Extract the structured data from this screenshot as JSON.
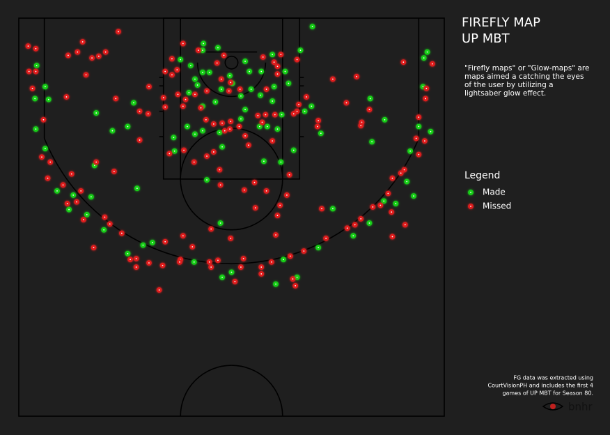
{
  "chart_data": {
    "type": "scatter",
    "title": "FIREFLY MAP",
    "subtitle": "UP MBT",
    "description": [
      "\"Firefly maps\" or \"Glow-maps\" are",
      "maps aimed a catching the eyes",
      "of the user by utilizing a",
      "lightsaber glow effect."
    ],
    "legend_title": "Legend",
    "note": [
      "FG data was extracted using",
      "CourtVisionPH and includes the first 4",
      "games of UP MBT for Season 80."
    ],
    "logo_text": "bnhr",
    "xlim": [
      0,
      50
    ],
    "ylim": [
      47,
      0
    ],
    "series": [
      {
        "name": "Made",
        "color": "#19d019",
        "x": [
          34.5,
          2.1,
          1.9,
          3.5,
          3.1,
          2.0,
          3.1,
          9.1,
          11.0,
          12.8,
          13.5,
          8.9,
          13.9,
          4.5,
          6.4,
          5.9,
          8.5,
          8.0,
          10.0,
          12.8,
          14.6,
          15.7,
          20.6,
          23.9,
          25.0,
          23.7,
          22.1,
          30.2,
          31.1,
          32.7,
          35.2,
          36.9,
          39.3,
          41.2,
          42.9,
          45.6,
          46.4,
          46.0,
          47.0,
          48.4,
          47.5,
          48.0,
          47.6,
          43.0,
          41.5,
          41.3,
          35.5,
          34.4,
          32.3,
          30.8,
          28.8,
          33.1,
          31.3,
          31.7,
          29.8,
          28.5,
          27.1,
          26.6,
          23.4,
          21.7,
          21.6,
          22.4,
          21.6,
          20.7,
          21.0,
          20.2,
          19.0,
          24.8,
          25.1,
          23.8,
          23.1,
          26.1,
          27.3,
          28.4,
          29.8,
          30.0,
          30.9,
          26.6,
          26.1,
          28.3,
          29.2,
          30.4,
          21.6,
          19.8,
          21.6,
          20.7,
          23.6,
          23.9,
          18.2,
          18.3,
          20.0,
          33.6,
          44.3
        ],
        "values": [
          1.0,
          5.6,
          9.5,
          9.6,
          8.1,
          13.1,
          15.4,
          11.2,
          13.3,
          12.8,
          10.0,
          17.4,
          20.1,
          20.4,
          20.9,
          22.6,
          21.1,
          23.2,
          25.0,
          27.8,
          26.8,
          26.5,
          28.8,
          30.6,
          30.0,
          24.2,
          19.1,
          31.4,
          28.5,
          30.6,
          27.1,
          22.5,
          25.7,
          24.2,
          21.6,
          19.3,
          21.0,
          15.7,
          12.8,
          13.4,
          8.1,
          4.0,
          4.7,
          12.0,
          14.6,
          9.5,
          13.6,
          10.4,
          15.6,
          17.0,
          16.9,
          3.8,
          6.3,
          7.7,
          4.3,
          6.3,
          6.3,
          5.1,
          3.5,
          3.0,
          3.8,
          6.4,
          6.4,
          7.2,
          7.9,
          5.6,
          4.9,
          6.8,
          7.7,
          8.4,
          9.9,
          9.2,
          8.4,
          9.1,
          9.8,
          8.1,
          11.4,
          10.8,
          11.9,
          12.8,
          12.8,
          13.1,
          10.4,
          12.8,
          13.3,
          13.7,
          13.5,
          15.2,
          14.1,
          15.7,
          8.8,
          11.0,
          21.9
        ]
      },
      {
        "name": "Missed",
        "color": "#e01e1e",
        "x": [
          11.7,
          7.5,
          1.1,
          2.0,
          5.8,
          6.9,
          8.6,
          9.4,
          10.2,
          1.2,
          2.0,
          7.9,
          1.6,
          5.6,
          2.9,
          11.4,
          14.2,
          15.2,
          15.3,
          14.2,
          9.1,
          11.2,
          2.7,
          3.7,
          6.2,
          3.4,
          5.2,
          7.3,
          6.8,
          5.7,
          7.6,
          10.1,
          10.7,
          12.1,
          8.8,
          13.1,
          13.8,
          13.8,
          15.3,
          16.9,
          17.2,
          19.3,
          20.4,
          19.0,
          18.9,
          22.4,
          22.6,
          23.4,
          26.1,
          26.4,
          25.4,
          28.5,
          28.5,
          29.7,
          31.9,
          33.5,
          32.2,
          32.5,
          16.5,
          24.9,
          22.6,
          30.2,
          30.4,
          30.7,
          31.5,
          27.8,
          26.5,
          29.1,
          27.7,
          23.6,
          23.7,
          31.8,
          20.6,
          22.1,
          22.9,
          19.4,
          17.7,
          35.6,
          36.1,
          38.6,
          39.5,
          40.2,
          41.6,
          42.5,
          43.4,
          43.8,
          43.9,
          45.4,
          43.9,
          44.9,
          45.3,
          47.0,
          46.7,
          47.7,
          47.0,
          47.8,
          47.9,
          48.6,
          45.2,
          40.3,
          40.2,
          41.2,
          38.5,
          39.7,
          36.9,
          35.2,
          35.1,
          33.8,
          32.9,
          32.7,
          32.3,
          29.8,
          27.0,
          26.6,
          24.8,
          24.9,
          23.9,
          24.2,
          22.9,
          22.0,
          28.1,
          29.0,
          30.1,
          28.6,
          25.9,
          21.4,
          19.6,
          19.3,
          18.7,
          17.0,
          17.2,
          20.7,
          22.1,
          24.7,
          26.0,
          23.8,
          24.9,
          18.0,
          17.2,
          18.6,
          18.0,
          19.3,
          21.1,
          24.1,
          23.3,
          28.7,
          30.8,
          30.4,
          30.4,
          30.0,
          32.7,
          29.1
        ],
        "values": [
          1.6,
          2.8,
          3.3,
          3.6,
          4.4,
          4.0,
          4.7,
          4.5,
          4.0,
          6.3,
          6.3,
          6.7,
          8.3,
          9.3,
          12.0,
          9.5,
          11.0,
          11.3,
          8.1,
          14.4,
          17.0,
          18.1,
          16.4,
          17.0,
          18.4,
          18.9,
          19.7,
          20.4,
          21.7,
          21.9,
          23.8,
          23.5,
          24.3,
          25.4,
          27.1,
          28.5,
          28.4,
          29.4,
          28.9,
          29.2,
          26.4,
          25.7,
          27.0,
          28.5,
          28.8,
          28.8,
          29.4,
          28.6,
          29.4,
          28.4,
          31.1,
          29.4,
          30.2,
          28.8,
          28.1,
          27.5,
          30.8,
          31.6,
          32.1,
          26.0,
          24.9,
          25.6,
          23.3,
          22.1,
          20.9,
          22.4,
          20.3,
          20.4,
          19.4,
          17.9,
          19.7,
          18.5,
          17.0,
          16.3,
          15.8,
          15.6,
          16.0,
          22.5,
          26.0,
          24.8,
          24.4,
          23.7,
          22.3,
          22.1,
          20.7,
          22.9,
          25.8,
          24.4,
          18.9,
          18.3,
          17.9,
          16.1,
          14.2,
          14.5,
          11.7,
          9.5,
          8.3,
          5.4,
          5.2,
          12.3,
          12.7,
          10.8,
          10.0,
          6.9,
          7.2,
          12.1,
          12.8,
          9.3,
          10.2,
          11.0,
          11.3,
          14.5,
          15.0,
          13.9,
          13.1,
          12.2,
          12.4,
          13.3,
          12.5,
          12.0,
          11.5,
          11.4,
          11.4,
          12.3,
          12.8,
          10.6,
          9.6,
          10.4,
          9.0,
          9.4,
          10.5,
          9.0,
          8.6,
          8.6,
          8.4,
          7.2,
          7.6,
          6.7,
          6.3,
          6.1,
          4.8,
          3.0,
          3.8,
          4.4,
          5.3,
          4.6,
          4.3,
          5.7,
          6.6,
          5.2,
          4.9,
          8.4
        ]
      }
    ]
  }
}
